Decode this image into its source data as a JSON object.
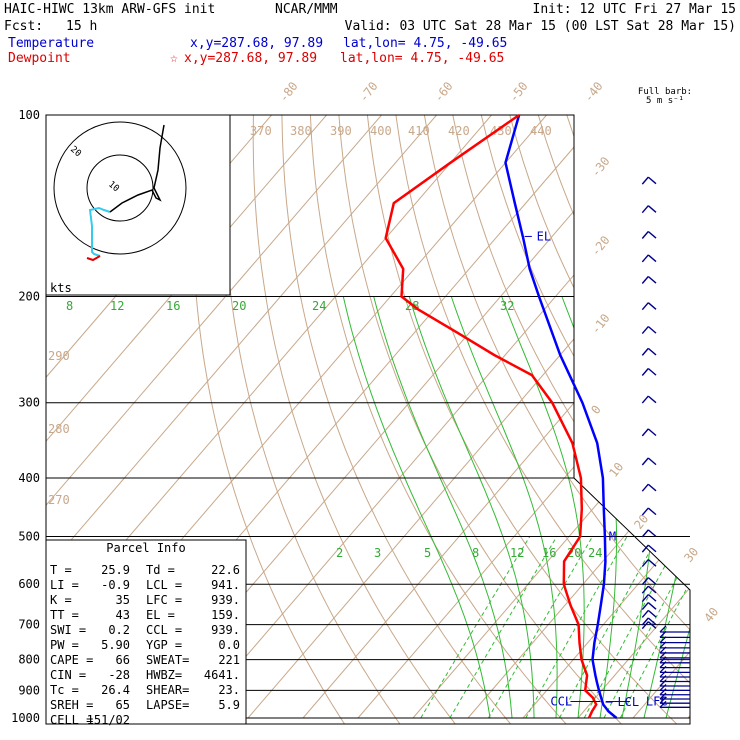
{
  "header": {
    "model": "HAIC-HIWC 13km ARW-GFS init",
    "org": "NCAR/MMM",
    "init": "Init: 12 UTC Fri 27 Mar 15",
    "fcst_label": "Fcst:",
    "fcst_value": "15 h",
    "valid": "Valid: 03 UTC Sat 28 Mar 15 (00 LST Sat 28 Mar 15)",
    "temperature_label": "Temperature",
    "temperature_xy": "x,y=287.68, 97.89",
    "temperature_latlon": "lat,lon=  4.75, -49.65",
    "dewpoint_label": "Dewpoint",
    "dewpoint_marker": "☆",
    "dewpoint_xy": "x,y=287.68, 97.89",
    "dewpoint_latlon": "lat,lon=  4.75, -49.65",
    "barb_title_1": "Full barb:",
    "barb_title_2": "5 m s⁻¹"
  },
  "parcel_info": {
    "title": "Parcel Info",
    "rows": [
      [
        "T   =",
        "25.9",
        "Td  =",
        "22.6"
      ],
      [
        "LI  =",
        "-0.9",
        "LCL =",
        "941."
      ],
      [
        "K   =",
        "35",
        "LFC =",
        "939."
      ],
      [
        "TT  =",
        "43",
        "EL  =",
        "159."
      ],
      [
        "SWI =",
        "0.2",
        "CCL =",
        "939."
      ],
      [
        "PW  =",
        "5.90",
        "YGP =",
        "0.0"
      ],
      [
        "CAPE =",
        "66",
        "SWEAT=",
        "221"
      ],
      [
        "CIN  =",
        "-28",
        "HWBZ=",
        "4641."
      ],
      [
        "Tc  =",
        "26.4",
        "SHEAR=",
        "23."
      ],
      [
        "SREH =",
        "65",
        "LAPSE=",
        "5.9"
      ],
      [
        "CELL =",
        "151/02",
        "",
        ""
      ]
    ]
  },
  "hodograph": {
    "ring_label": "20",
    "inner_label": "10",
    "units_label": "kts"
  },
  "chart_data": {
    "type": "line",
    "subtype": "skew-T log-p sounding",
    "y_axis": "pressure (hPa), log scale",
    "ylim": [
      1000,
      100
    ],
    "pressure_levels": [
      100,
      200,
      300,
      400,
      500,
      600,
      700,
      800,
      900,
      1000
    ],
    "pressure_tick_labels": [
      "100",
      "200",
      "300",
      "400",
      "500",
      "600",
      "700",
      "800",
      "900",
      "1000"
    ],
    "isotherm_labels_deg_c": [
      "-80",
      "-70",
      "-60",
      "-50",
      "-40",
      "-30",
      "-20",
      "-10",
      "0",
      "10",
      "20",
      "30",
      "40"
    ],
    "dry_adiabat_labels_k": [
      "370",
      "380",
      "390",
      "400",
      "410",
      "420",
      "430",
      "440",
      "290",
      "280",
      "270"
    ],
    "moist_adiabat_labels": [
      "8",
      "12",
      "16",
      "20",
      "24",
      "28",
      "32"
    ],
    "mixing_ratio_labels": [
      "2",
      "3",
      "5",
      "8",
      "12",
      "16",
      "20",
      "24"
    ],
    "series": [
      {
        "name": "Temperature",
        "color": "#0000ff",
        "points": [
          [
            1000,
            27.0
          ],
          [
            975,
            24.5
          ],
          [
            950,
            22.5
          ],
          [
            925,
            21.0
          ],
          [
            900,
            19.5
          ],
          [
            875,
            18.0
          ],
          [
            850,
            16.5
          ],
          [
            800,
            13.5
          ],
          [
            750,
            11.2
          ],
          [
            700,
            9.0
          ],
          [
            650,
            6.5
          ],
          [
            600,
            3.8
          ],
          [
            550,
            0.5
          ],
          [
            500,
            -3.5
          ],
          [
            450,
            -8.0
          ],
          [
            400,
            -13.0
          ],
          [
            350,
            -19.5
          ],
          [
            300,
            -28.5
          ],
          [
            250,
            -40.0
          ],
          [
            200,
            -53.0
          ],
          [
            180,
            -59.0
          ],
          [
            160,
            -65.0
          ],
          [
            140,
            -72.0
          ],
          [
            120,
            -80.0
          ],
          [
            100,
            -85.0
          ]
        ]
      },
      {
        "name": "Dewpoint",
        "color": "#ff0000",
        "points": [
          [
            1000,
            22.0
          ],
          [
            975,
            21.5
          ],
          [
            950,
            21.2
          ],
          [
            925,
            19.5
          ],
          [
            900,
            17.0
          ],
          [
            875,
            16.0
          ],
          [
            850,
            15.0
          ],
          [
            800,
            11.5
          ],
          [
            750,
            8.5
          ],
          [
            700,
            5.5
          ],
          [
            650,
            1.0
          ],
          [
            600,
            -3.5
          ],
          [
            550,
            -7.0
          ],
          [
            500,
            -8.0
          ],
          [
            450,
            -12.0
          ],
          [
            400,
            -17.0
          ],
          [
            350,
            -24.0
          ],
          [
            300,
            -34.0
          ],
          [
            270,
            -42.0
          ],
          [
            250,
            -52.0
          ],
          [
            230,
            -62.0
          ],
          [
            210,
            -73.0
          ],
          [
            200,
            -78.0
          ],
          [
            180,
            -82.0
          ],
          [
            160,
            -90.0
          ],
          [
            140,
            -94.0
          ],
          [
            120,
            -90.0
          ],
          [
            100,
            -85.0
          ]
        ]
      }
    ],
    "annotations": [
      "EL",
      "M",
      "CCL",
      "LCL",
      "LFC"
    ],
    "wind_barbs_units": "m s-1"
  }
}
